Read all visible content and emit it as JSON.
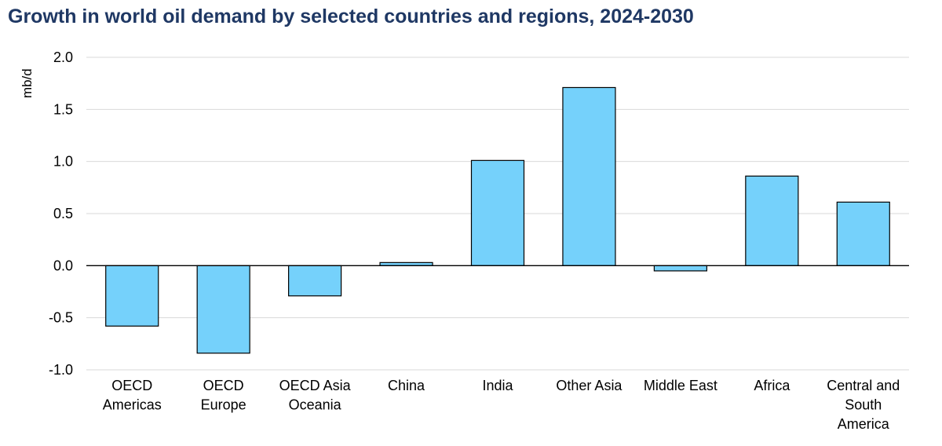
{
  "chart_data": {
    "type": "bar",
    "title": "Growth in world oil demand by selected countries and regions, 2024-2030",
    "ylabel": "mb/d",
    "xlabel": "",
    "categories": [
      [
        "OECD",
        "Americas"
      ],
      [
        "OECD",
        "Europe"
      ],
      [
        "OECD Asia",
        "Oceania"
      ],
      [
        "China"
      ],
      [
        "India"
      ],
      [
        "Other Asia"
      ],
      [
        "Middle East"
      ],
      [
        "Africa"
      ],
      [
        "Central and",
        "South",
        "America"
      ]
    ],
    "values": [
      -0.58,
      -0.84,
      -0.29,
      0.03,
      1.01,
      1.71,
      -0.05,
      0.86,
      0.61
    ],
    "ylim": [
      -1.0,
      2.0
    ],
    "yticks": [
      "2.0",
      "1.5",
      "1.0",
      "0.5",
      "0.0",
      "-0.5",
      "-1.0"
    ],
    "grid": true,
    "bar_color": "#75d1fb",
    "bar_edge_color": "#000000",
    "title_color": "#1f3864"
  }
}
